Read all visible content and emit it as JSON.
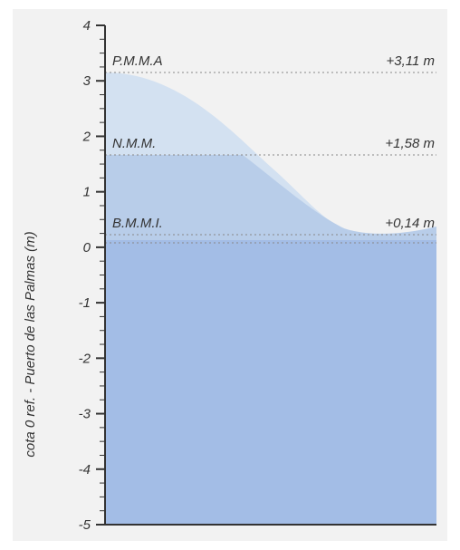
{
  "y_axis": {
    "label": "cota 0 ref. - Puerto de las Palmas (m)",
    "ticks": [
      "-5",
      "-4",
      "-3",
      "-2",
      "-1",
      "0",
      "1",
      "2",
      "3",
      "4"
    ],
    "range": [
      -5,
      4
    ]
  },
  "levels": [
    {
      "name": "P.M.M.A",
      "value_label": "+3,11 m",
      "value": 3.11
    },
    {
      "name": "N.M.M.",
      "value_label": "+1,58 m",
      "value": 1.58
    },
    {
      "name": "B.M.M.I.",
      "value_label": "+0,14 m",
      "value": 0.14
    }
  ],
  "colors": {
    "background": "#f2f2f2",
    "deep_water": "#a3bde6",
    "mid_water": "#b8cde9",
    "light_water": "#d3e1f1",
    "axis": "#333333",
    "dotted": "#888888"
  }
}
